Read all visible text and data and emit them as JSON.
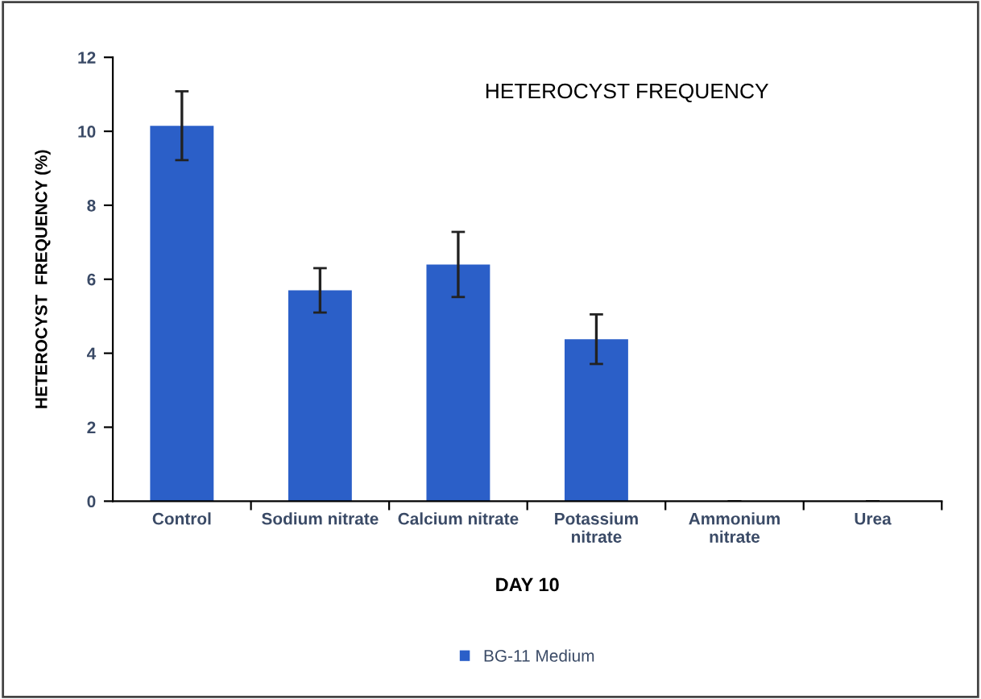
{
  "chart_data": {
    "type": "bar",
    "title": "HETEROCYST FREQUENCY",
    "xlabel": "DAY 10",
    "ylabel": "HETEROCYST  FREQUENCY (%)",
    "categories": [
      "Control",
      "Sodium nitrate",
      "Calcium nitrate",
      "Potassium\nnitrate",
      "Ammonium\nnitrate",
      "Urea"
    ],
    "series": [
      {
        "name": "BG-11 Medium",
        "color": "#2b5fc8",
        "values": [
          10.15,
          5.7,
          6.4,
          4.38,
          0,
          0
        ],
        "errors": [
          0.93,
          0.6,
          0.88,
          0.67,
          null,
          null
        ]
      }
    ],
    "ylim": [
      0,
      12
    ],
    "yticks": [
      0,
      2,
      4,
      6,
      8,
      10,
      12
    ],
    "grid": false,
    "legend": "bottom"
  }
}
